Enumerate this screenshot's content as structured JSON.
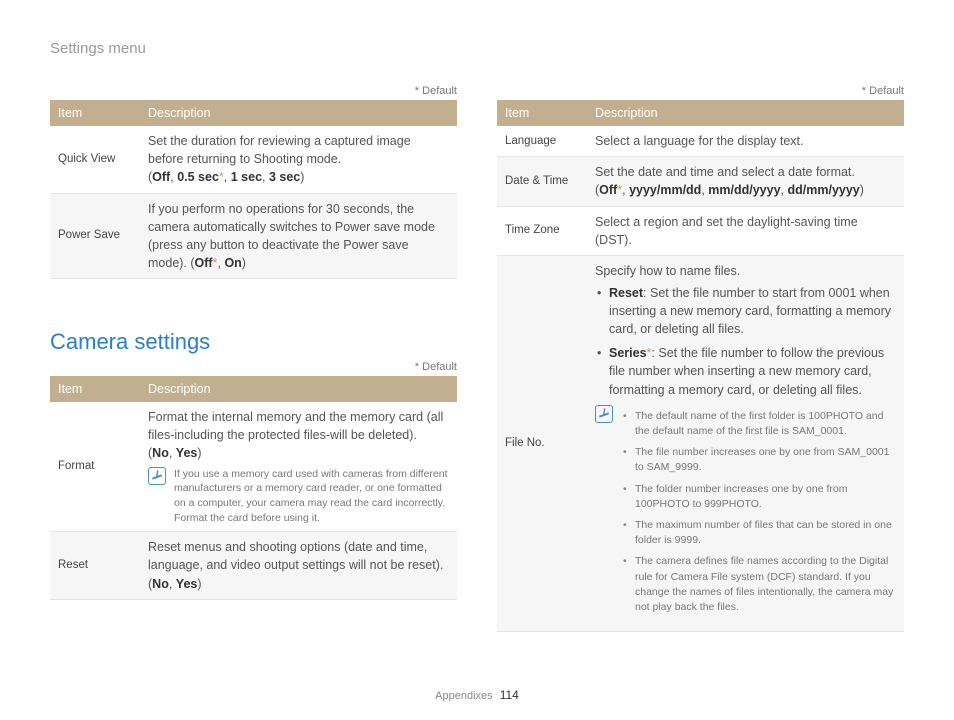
{
  "breadcrumb": "Settings menu",
  "default_label": "* Default",
  "section_heading": "Camera settings",
  "table_headers": {
    "item": "Item",
    "description": "Description"
  },
  "table1": {
    "rows": [
      {
        "item": "Quick View",
        "desc": "Set the duration for reviewing a captured image before returning to Shooting mode.",
        "options_prefix": "(",
        "options": [
          "Off",
          "0.5 sec*",
          "1 sec",
          "3 sec"
        ],
        "options_suffix": ")"
      },
      {
        "item": "Power Save",
        "desc": "If you perform no operations for 30 seconds, the camera automatically switches to Power save mode (press any button to deactivate the Power save mode). (",
        "options": [
          "Off*",
          "On"
        ],
        "options_suffix": ")"
      }
    ]
  },
  "table2": {
    "rows": [
      {
        "item": "Format",
        "desc": "Format the internal memory and the memory card (all files-including the protected files-will be deleted).",
        "options_prefix": "(",
        "options": [
          "No",
          "Yes"
        ],
        "options_suffix": ")",
        "tip": "If you use a memory card used with cameras from different manufacturers or a memory card reader, or one formatted on a computer, your camera may read the card incorrectly. Format the card before using it."
      },
      {
        "item": "Reset",
        "desc": "Reset menus and shooting options (date and time, language, and video output settings will not be reset).",
        "options_prefix": "(",
        "options": [
          "No",
          "Yes"
        ],
        "options_suffix": ")"
      }
    ]
  },
  "table3": {
    "rows": [
      {
        "item": "Language",
        "desc": "Select a language for the display text."
      },
      {
        "item": "Date & Time",
        "desc": "Set the date and time and select a date format.",
        "options_prefix": "(",
        "options": [
          "Off*",
          "yyyy/mm/dd",
          "mm/dd/yyyy",
          "dd/mm/yyyy"
        ],
        "options_suffix": ")"
      },
      {
        "item": "Time Zone",
        "desc": "Select a region and set the daylight-saving time (DST)."
      },
      {
        "item": "File No.",
        "intro": "Specify how to name files.",
        "bullets": [
          {
            "title": "Reset",
            "text": ": Set the file number to start from 0001 when inserting a new memory card, formatting a memory card, or deleting all files."
          },
          {
            "title": "Series*",
            "text": ": Set the file number to follow the previous file number when inserting a new memory card, formatting a memory card, or deleting all files."
          }
        ],
        "tip_bullets": [
          "The default name of the first folder is 100PHOTO and the default name of the first file is SAM_0001.",
          "The file number increases one by one from SAM_0001 to SAM_9999.",
          "The folder number increases one by one from 100PHOTO to 999PHOTO.",
          "The maximum number of files that can be stored in one folder is 9999.",
          "The camera defines file names according to the Digital rule for Camera File system (DCF) standard. If you change the names of files intentionally, the camera may not play back the files."
        ]
      }
    ]
  },
  "footer": {
    "section": "Appendixes",
    "page": "114"
  }
}
